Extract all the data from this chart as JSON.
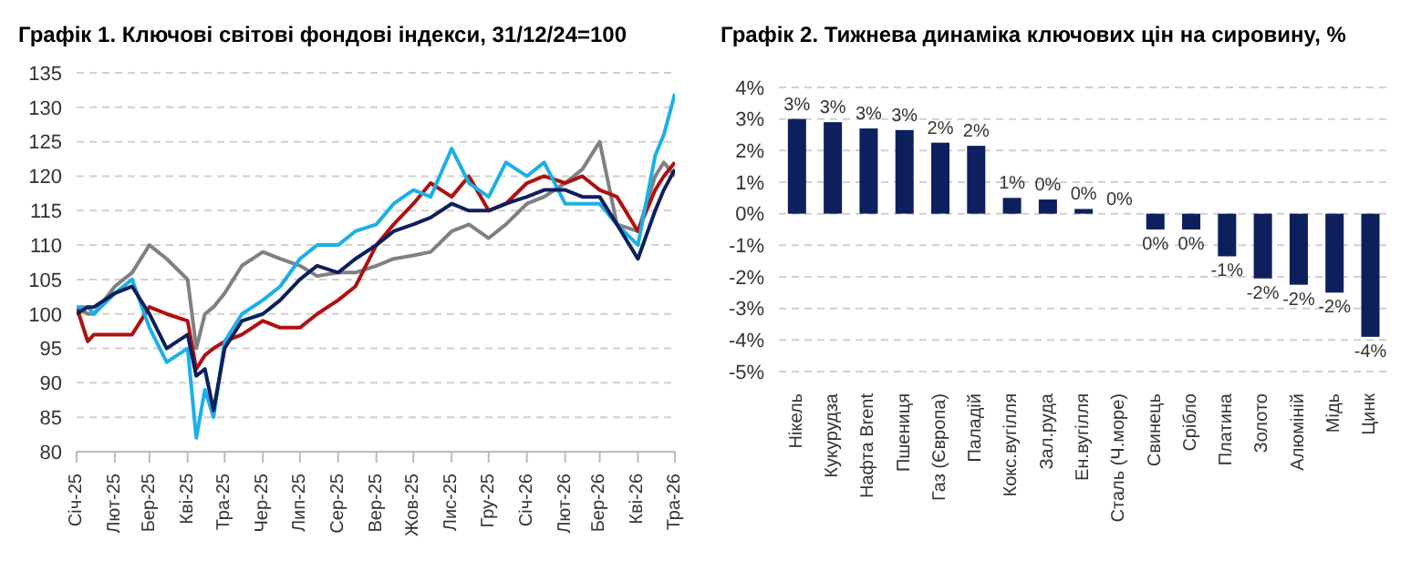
{
  "chart_data": [
    {
      "type": "line",
      "title": "Графік 1. Ключові світові фондові індекси, 31/12/24=100",
      "x": [
        "2025-01-01",
        "2025-01-10",
        "2025-01-15",
        "2025-02-01",
        "2025-02-15",
        "2025-03-01",
        "2025-03-15",
        "2025-04-01",
        "2025-04-08",
        "2025-04-15",
        "2025-04-22",
        "2025-05-01",
        "2025-05-15",
        "2025-06-01",
        "2025-06-15",
        "2025-07-01",
        "2025-07-15",
        "2025-08-01",
        "2025-08-15",
        "2025-09-01",
        "2025-09-15",
        "2025-10-01",
        "2025-10-15",
        "2025-11-01",
        "2025-11-15",
        "2025-12-01",
        "2025-12-15",
        "2026-01-01",
        "2026-01-15",
        "2026-02-01",
        "2026-02-15",
        "2026-03-01",
        "2026-03-15",
        "2026-04-01",
        "2026-04-15",
        "2026-04-22",
        "2026-05-01"
      ],
      "series": [
        {
          "color": "#808080",
          "values": [
            101,
            100,
            100,
            104,
            106,
            110,
            108,
            105,
            95,
            100,
            101,
            103,
            107,
            109,
            108,
            107,
            105.5,
            106,
            106,
            107,
            108,
            108.5,
            109,
            112,
            113,
            111,
            113,
            116,
            117,
            119,
            121,
            125,
            113,
            112,
            120,
            122,
            120
          ]
        },
        {
          "color": "#b01010",
          "values": [
            101,
            96,
            97,
            97,
            97,
            101,
            100,
            99,
            92,
            94,
            95,
            96,
            97,
            99,
            98,
            98,
            100,
            102,
            104,
            110,
            113,
            116,
            119,
            117,
            120,
            115,
            116,
            119,
            120,
            119,
            120,
            118,
            117,
            112,
            118,
            120,
            122
          ]
        },
        {
          "color": "#1ab0e8",
          "values": [
            101,
            101,
            100,
            103,
            105,
            98,
            93,
            95,
            82,
            89,
            85,
            96,
            100,
            102,
            104,
            108,
            110,
            110,
            112,
            113,
            116,
            118,
            117,
            124,
            119,
            117,
            122,
            120,
            122,
            116,
            116,
            116,
            113,
            110,
            123,
            126,
            132
          ]
        },
        {
          "color": "#0d1f5c",
          "values": [
            100,
            101,
            101,
            103,
            104,
            100,
            95,
            97,
            91,
            92,
            86,
            95,
            99,
            100,
            102,
            105,
            107,
            106,
            108,
            110,
            112,
            113,
            114,
            116,
            115,
            115,
            116,
            117,
            118,
            118,
            117,
            117,
            113,
            108,
            115,
            118,
            121
          ]
        }
      ],
      "xlim": [
        "2025-01-01",
        "2026-05-01"
      ],
      "xticks": [
        {
          "value": "2025-01-01",
          "label": "Січ-25"
        },
        {
          "value": "2025-02-01",
          "label": "Лют-25"
        },
        {
          "value": "2025-03-01",
          "label": "Бер-25"
        },
        {
          "value": "2025-04-01",
          "label": "Кві-25"
        },
        {
          "value": "2025-05-01",
          "label": "Тра-25"
        },
        {
          "value": "2025-06-01",
          "label": "Чер-25"
        },
        {
          "value": "2025-07-01",
          "label": "Лип-25"
        },
        {
          "value": "2025-08-01",
          "label": "Сер-25"
        },
        {
          "value": "2025-09-01",
          "label": "Вер-25"
        },
        {
          "value": "2025-10-01",
          "label": "Жов-25"
        },
        {
          "value": "2025-11-01",
          "label": "Лис-25"
        },
        {
          "value": "2025-12-01",
          "label": "Гру-25"
        },
        {
          "value": "2026-01-01",
          "label": "Січ-26"
        },
        {
          "value": "2026-02-01",
          "label": "Лют-26"
        },
        {
          "value": "2026-03-01",
          "label": "Бер-26"
        },
        {
          "value": "2026-04-01",
          "label": "Кві-26"
        },
        {
          "value": "2026-05-01",
          "label": "Тра-26"
        }
      ],
      "ylim": [
        80,
        135
      ],
      "yticks": [
        80,
        85,
        90,
        95,
        100,
        105,
        110,
        115,
        120,
        125,
        130,
        135
      ],
      "grid": "y",
      "marker": "none",
      "line_style": "solid"
    },
    {
      "type": "bar",
      "title": "Графік 2. Тижнева динаміка ключових цін на сировину, %",
      "categories": [
        "Нікель",
        "Кукурудза",
        "Нафта Brent",
        "Пшениця",
        "Газ (Європа)",
        "Паладій",
        "Кокс.вугілля",
        "Зал.руда",
        "Ен.вугілля",
        "Сталь (Ч.море)",
        "Свинець",
        "Срібло",
        "Платина",
        "Золото",
        "Алюміній",
        "Мідь",
        "Цинк"
      ],
      "values": [
        3.0,
        2.9,
        2.7,
        2.65,
        2.25,
        2.15,
        0.5,
        0.45,
        0.15,
        0.0,
        -0.5,
        -0.5,
        -1.35,
        -2.05,
        -2.25,
        -2.5,
        -3.9
      ],
      "value_labels": [
        "3%",
        "3%",
        "3%",
        "3%",
        "2%",
        "2%",
        "1%",
        "0%",
        "0%",
        "0%",
        "0%",
        "0%",
        "-1%",
        "-2%",
        "-2%",
        "-2%",
        "-4%"
      ],
      "color": "#0d1f5c",
      "ylim": [
        -5,
        4
      ],
      "yticks": [
        {
          "value": -5,
          "label": "-5%"
        },
        {
          "value": -4,
          "label": "-4%"
        },
        {
          "value": -3,
          "label": "-3%"
        },
        {
          "value": -2,
          "label": "-2%"
        },
        {
          "value": -1,
          "label": "-1%"
        },
        {
          "value": 0,
          "label": "0%"
        },
        {
          "value": 1,
          "label": "1%"
        },
        {
          "value": 2,
          "label": "2%"
        },
        {
          "value": 3,
          "label": "3%"
        },
        {
          "value": 4,
          "label": "4%"
        }
      ],
      "grid": "y"
    }
  ]
}
